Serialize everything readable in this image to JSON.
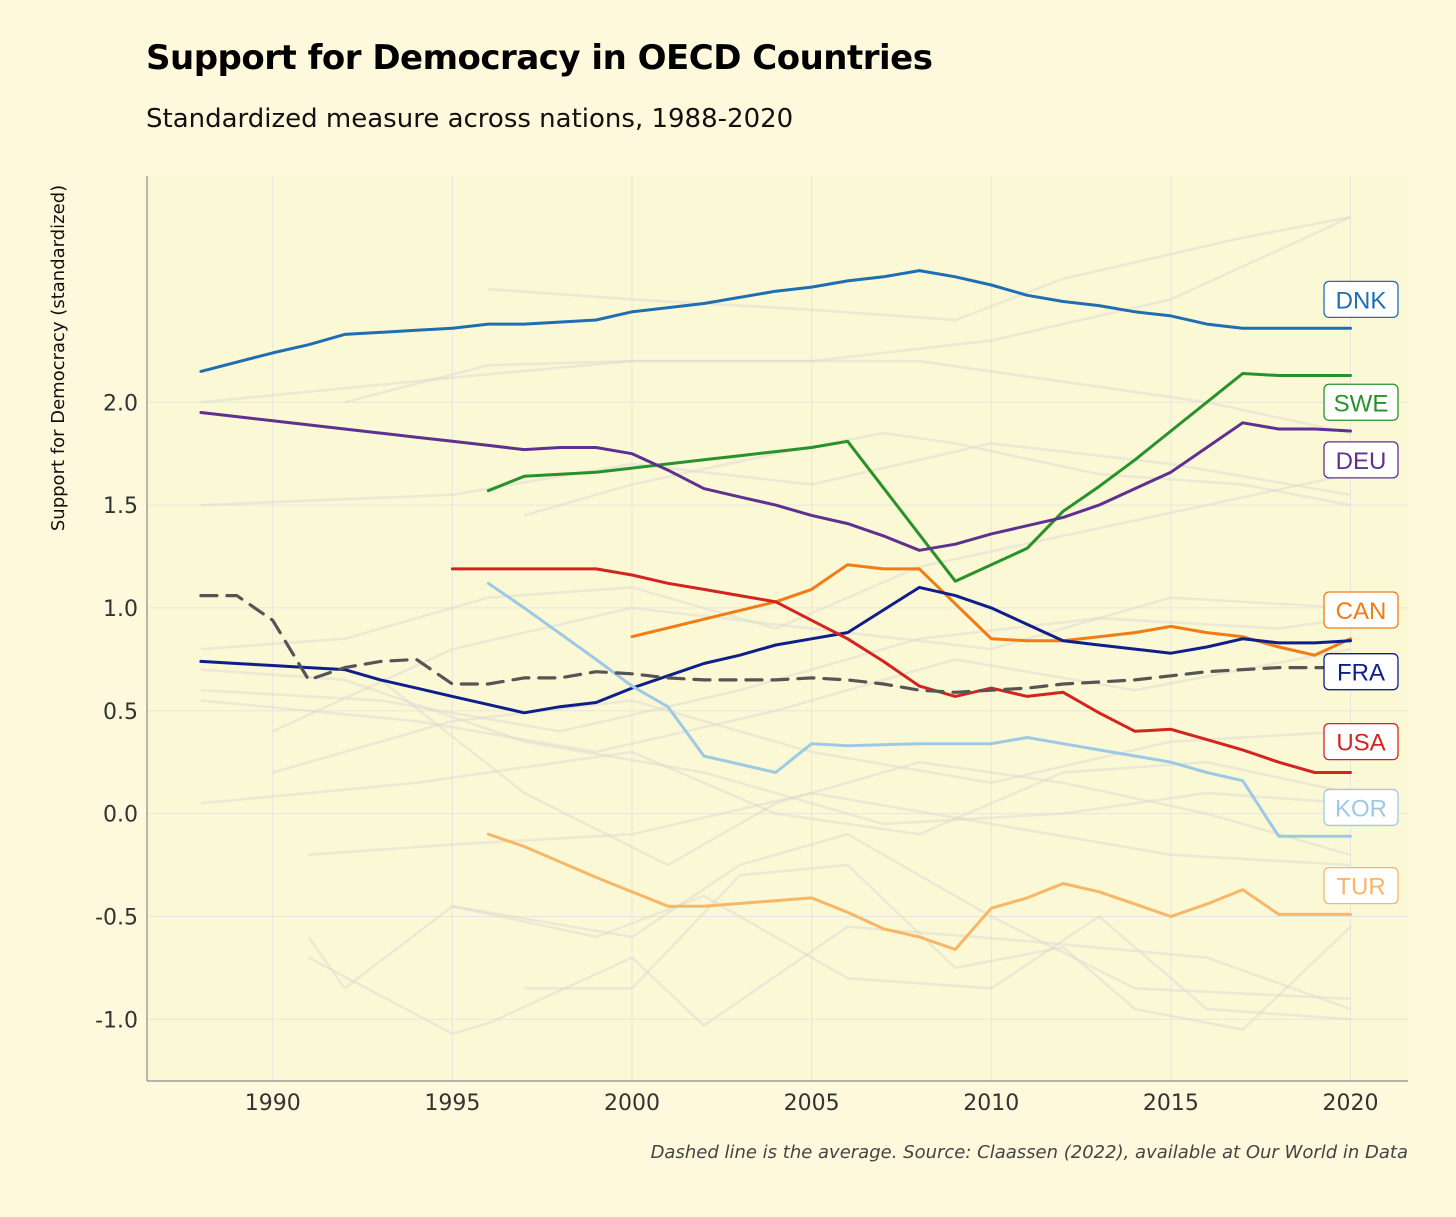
{
  "title": "Support for Democracy in OECD Countries",
  "subtitle": "Standardized measure across nations, 1988-2020",
  "caption": "Dashed line is the average. Source: Claassen (2022), available at Our World in Data",
  "chart_data": {
    "type": "line",
    "xlabel": "",
    "ylabel": "Support for Democracy (standardized)",
    "xlim": [
      1986.5,
      2021.6
    ],
    "ylim": [
      -1.3,
      3.1
    ],
    "xticks": [
      1990,
      1995,
      2000,
      2005,
      2010,
      2015,
      2020
    ],
    "yticks": [
      -1.0,
      -0.5,
      0.0,
      0.5,
      1.0,
      1.5,
      2.0
    ],
    "ytick_labels": [
      "-1.0",
      "-0.5",
      "0.0",
      "0.5",
      "1.0",
      "1.5",
      "2.0"
    ],
    "grid": true,
    "colors": {
      "background": "#fef8dc",
      "panel": "#fbf8d6",
      "grid": "#e6e6de",
      "background_lines": "#d6d6d0",
      "average": "#555555"
    },
    "series": [
      {
        "name": "DNK",
        "color": "#1f6eb2",
        "label_y": 2.5,
        "x": [
          1988,
          1990,
          1991,
          1992,
          1994,
          1995,
          1996,
          1997,
          1999,
          2000,
          2002,
          2004,
          2005,
          2006,
          2007,
          2008,
          2009,
          2010,
          2011,
          2012,
          2013,
          2014,
          2015,
          2016,
          2017,
          2018,
          2019,
          2020
        ],
        "y": [
          2.15,
          2.24,
          2.28,
          2.33,
          2.35,
          2.36,
          2.38,
          2.38,
          2.4,
          2.44,
          2.48,
          2.54,
          2.56,
          2.59,
          2.61,
          2.64,
          2.61,
          2.57,
          2.52,
          2.49,
          2.47,
          2.44,
          2.42,
          2.38,
          2.36,
          2.36,
          2.36,
          2.36
        ]
      },
      {
        "name": "SWE",
        "color": "#28922a",
        "label_y": 2.0,
        "x": [
          1996,
          1997,
          1999,
          2000,
          2002,
          2003,
          2004,
          2005,
          2006,
          2009,
          2011,
          2012,
          2013,
          2014,
          2015,
          2017,
          2018,
          2019,
          2020
        ],
        "y": [
          1.57,
          1.64,
          1.66,
          1.68,
          1.72,
          1.74,
          1.76,
          1.78,
          1.81,
          1.13,
          1.29,
          1.47,
          1.59,
          1.72,
          1.86,
          2.14,
          2.13,
          2.13,
          2.13
        ]
      },
      {
        "name": "DEU",
        "color": "#5e318e",
        "label_y": 1.72,
        "x": [
          1988,
          1989,
          1990,
          1991,
          1992,
          1993,
          1994,
          1995,
          1996,
          1997,
          1998,
          1999,
          2000,
          2001,
          2002,
          2003,
          2004,
          2005,
          2006,
          2007,
          2008,
          2009,
          2010,
          2011,
          2012,
          2013,
          2014,
          2015,
          2016,
          2017,
          2018,
          2019,
          2020
        ],
        "y": [
          1.95,
          1.93,
          1.91,
          1.89,
          1.87,
          1.85,
          1.83,
          1.81,
          1.79,
          1.77,
          1.78,
          1.78,
          1.75,
          1.67,
          1.58,
          1.54,
          1.5,
          1.45,
          1.41,
          1.35,
          1.28,
          1.31,
          1.36,
          1.4,
          1.44,
          1.5,
          1.58,
          1.66,
          1.78,
          1.9,
          1.87,
          1.87,
          1.86
        ]
      },
      {
        "name": "CAN",
        "color": "#f27c14",
        "label_y": 0.99,
        "x": [
          2000,
          2004,
          2005,
          2006,
          2007,
          2008,
          2010,
          2011,
          2012,
          2013,
          2014,
          2015,
          2016,
          2017,
          2018,
          2019,
          2020
        ],
        "y": [
          0.86,
          1.03,
          1.09,
          1.21,
          1.19,
          1.19,
          0.85,
          0.84,
          0.84,
          0.86,
          0.88,
          0.91,
          0.88,
          0.86,
          0.81,
          0.77,
          0.85
        ]
      },
      {
        "name": "FRA",
        "color": "#0f1f8a",
        "label_y": 0.69,
        "x": [
          1988,
          1989,
          1990,
          1991,
          1992,
          1993,
          1994,
          1995,
          1996,
          1997,
          1998,
          1999,
          2000,
          2001,
          2002,
          2003,
          2004,
          2005,
          2006,
          2007,
          2008,
          2009,
          2010,
          2011,
          2012,
          2013,
          2014,
          2015,
          2016,
          2017,
          2018,
          2019,
          2020
        ],
        "y": [
          0.74,
          0.73,
          0.72,
          0.71,
          0.7,
          0.65,
          0.61,
          0.57,
          0.53,
          0.49,
          0.52,
          0.54,
          0.61,
          0.67,
          0.73,
          0.77,
          0.82,
          0.85,
          0.88,
          0.99,
          1.1,
          1.06,
          1.0,
          0.92,
          0.84,
          0.82,
          0.8,
          0.78,
          0.81,
          0.85,
          0.83,
          0.83,
          0.84
        ]
      },
      {
        "name": "USA",
        "color": "#d42420",
        "label_y": 0.35,
        "x": [
          1995,
          1996,
          1997,
          1998,
          1999,
          2000,
          2001,
          2002,
          2003,
          2004,
          2005,
          2006,
          2007,
          2008,
          2009,
          2010,
          2011,
          2012,
          2013,
          2014,
          2015,
          2016,
          2017,
          2018,
          2019,
          2020
        ],
        "y": [
          1.19,
          1.19,
          1.19,
          1.19,
          1.19,
          1.16,
          1.12,
          1.09,
          1.06,
          1.03,
          0.94,
          0.85,
          0.74,
          0.62,
          0.57,
          0.61,
          0.57,
          0.59,
          0.49,
          0.4,
          0.41,
          0.36,
          0.31,
          0.25,
          0.2,
          0.2
        ]
      },
      {
        "name": "KOR",
        "color": "#9ec9e5",
        "label_y": 0.03,
        "x": [
          1996,
          1997,
          1999,
          2000,
          2001,
          2002,
          2004,
          2005,
          2006,
          2008,
          2010,
          2011,
          2012,
          2013,
          2014,
          2015,
          2016,
          2017,
          2018,
          2019,
          2020
        ],
        "y": [
          1.12,
          1.0,
          0.75,
          0.62,
          0.52,
          0.28,
          0.2,
          0.34,
          0.33,
          0.34,
          0.34,
          0.37,
          0.34,
          0.31,
          0.28,
          0.25,
          0.2,
          0.16,
          -0.11,
          -0.11,
          -0.11
        ]
      },
      {
        "name": "TUR",
        "color": "#f7b766",
        "label_y": -0.35,
        "x": [
          1996,
          1997,
          1999,
          2000,
          2001,
          2002,
          2005,
          2006,
          2007,
          2008,
          2009,
          2010,
          2011,
          2012,
          2013,
          2014,
          2015,
          2016,
          2017,
          2018,
          2019,
          2020
        ],
        "y": [
          -0.1,
          -0.16,
          -0.31,
          -0.38,
          -0.45,
          -0.45,
          -0.41,
          -0.48,
          -0.56,
          -0.6,
          -0.66,
          -0.46,
          -0.41,
          -0.34,
          -0.38,
          -0.44,
          -0.5,
          -0.44,
          -0.37,
          -0.49,
          -0.49,
          -0.49
        ]
      },
      {
        "name": "Average",
        "color": "#555555",
        "dashed": true,
        "x": [
          1988,
          1989,
          1990,
          1991,
          1992,
          1993,
          1994,
          1995,
          1996,
          1997,
          1998,
          1999,
          2000,
          2001,
          2002,
          2003,
          2004,
          2005,
          2006,
          2007,
          2008,
          2009,
          2010,
          2011,
          2012,
          2013,
          2014,
          2015,
          2016,
          2017,
          2018,
          2019,
          2020
        ],
        "y": [
          1.06,
          1.06,
          0.94,
          0.65,
          0.71,
          0.74,
          0.75,
          0.63,
          0.63,
          0.66,
          0.66,
          0.69,
          0.68,
          0.66,
          0.65,
          0.65,
          0.65,
          0.66,
          0.65,
          0.63,
          0.6,
          0.59,
          0.6,
          0.61,
          0.63,
          0.64,
          0.65,
          0.67,
          0.69,
          0.7,
          0.71,
          0.71,
          0.71
        ]
      }
    ],
    "background_series": [
      {
        "x": [
          1988,
          1995,
          2000,
          2005,
          2010,
          2015,
          2020
        ],
        "y": [
          2.0,
          2.12,
          2.2,
          2.2,
          2.3,
          2.5,
          2.9
        ]
      },
      {
        "x": [
          1996,
          2000,
          2005,
          2009,
          2012,
          2017,
          2020
        ],
        "y": [
          2.55,
          2.5,
          2.45,
          2.4,
          2.6,
          2.8,
          2.9
        ]
      },
      {
        "x": [
          1992,
          1996,
          2000,
          2005,
          2008,
          2012,
          2016,
          2020
        ],
        "y": [
          2.0,
          2.18,
          2.2,
          2.2,
          2.2,
          2.1,
          2.0,
          1.85
        ]
      },
      {
        "x": [
          1988,
          1995,
          2000,
          2005,
          2010,
          2015,
          2020
        ],
        "y": [
          1.5,
          1.55,
          1.7,
          1.6,
          1.8,
          1.7,
          1.55
        ]
      },
      {
        "x": [
          1997,
          2000,
          2004,
          2007,
          2009,
          2013,
          2017,
          2020
        ],
        "y": [
          1.45,
          1.6,
          1.75,
          1.85,
          1.8,
          1.65,
          1.6,
          1.5
        ]
      },
      {
        "x": [
          1988,
          1992,
          1996,
          2000,
          2004,
          2008,
          2012,
          2016,
          2020
        ],
        "y": [
          0.8,
          0.85,
          1.05,
          1.1,
          0.9,
          1.2,
          1.35,
          1.5,
          1.65
        ]
      },
      {
        "x": [
          1990,
          1995,
          2000,
          2005,
          2010,
          2015,
          2020
        ],
        "y": [
          0.4,
          0.8,
          1.0,
          0.9,
          0.8,
          1.05,
          1.0
        ]
      },
      {
        "x": [
          1988,
          1993,
          1998,
          2003,
          2008,
          2013,
          2018,
          2020
        ],
        "y": [
          0.6,
          0.55,
          0.4,
          0.6,
          0.85,
          0.95,
          0.9,
          0.95
        ]
      },
      {
        "x": [
          1988,
          1994,
          1999,
          2004,
          2009,
          2014,
          2020
        ],
        "y": [
          0.55,
          0.45,
          0.3,
          0.5,
          0.75,
          0.6,
          0.8
        ]
      },
      {
        "x": [
          1990,
          1995,
          2000,
          2005,
          2010,
          2015,
          2020
        ],
        "y": [
          0.2,
          0.45,
          0.55,
          0.3,
          0.15,
          0.35,
          0.4
        ]
      },
      {
        "x": [
          1988,
          1994,
          2000,
          2004,
          2008,
          2012,
          2016,
          2020
        ],
        "y": [
          0.05,
          0.15,
          0.3,
          0.0,
          -0.1,
          0.2,
          0.25,
          0.1
        ]
      },
      {
        "x": [
          1991,
          1995,
          2000,
          2005,
          2010,
          2015,
          2020
        ],
        "y": [
          -0.2,
          -0.15,
          -0.1,
          0.1,
          -0.05,
          -0.2,
          -0.25
        ]
      },
      {
        "x": [
          1993,
          1997,
          2001,
          2004,
          2008,
          2012,
          2016,
          2020
        ],
        "y": [
          0.65,
          0.1,
          -0.25,
          0.05,
          0.25,
          0.15,
          0.0,
          -0.2
        ]
      },
      {
        "x": [
          1991,
          1992,
          1995,
          2000,
          2003,
          2006,
          2010,
          2014,
          2020
        ],
        "y": [
          -0.6,
          -0.85,
          -0.45,
          -0.6,
          -0.25,
          -0.1,
          -0.5,
          -0.85,
          -0.9
        ]
      },
      {
        "x": [
          1991,
          1995,
          1996,
          2000,
          2002,
          2006,
          2011,
          2016,
          2020
        ],
        "y": [
          -0.7,
          -1.07,
          -1.02,
          -0.7,
          -1.03,
          -0.55,
          -0.62,
          -0.7,
          -0.95
        ]
      },
      {
        "x": [
          1995,
          1999,
          2002,
          2006,
          2010,
          2013,
          2016,
          2020
        ],
        "y": [
          -0.45,
          -0.6,
          -0.4,
          -0.8,
          -0.85,
          -0.5,
          -0.95,
          -1.0
        ]
      },
      {
        "x": [
          1997,
          2000,
          2003,
          2006,
          2009,
          2012,
          2014,
          2017,
          2020
        ],
        "y": [
          -0.85,
          -0.85,
          -0.3,
          -0.25,
          -0.75,
          -0.65,
          -0.95,
          -1.05,
          -0.55
        ]
      },
      {
        "x": [
          1988,
          1992,
          1997,
          2002,
          2007,
          2012,
          2016,
          2020
        ],
        "y": [
          0.7,
          0.65,
          0.35,
          0.2,
          -0.05,
          0.0,
          0.1,
          0.05
        ]
      }
    ],
    "end_labels": [
      "DNK",
      "SWE",
      "DEU",
      "CAN",
      "FRA",
      "USA",
      "KOR",
      "TUR"
    ]
  }
}
